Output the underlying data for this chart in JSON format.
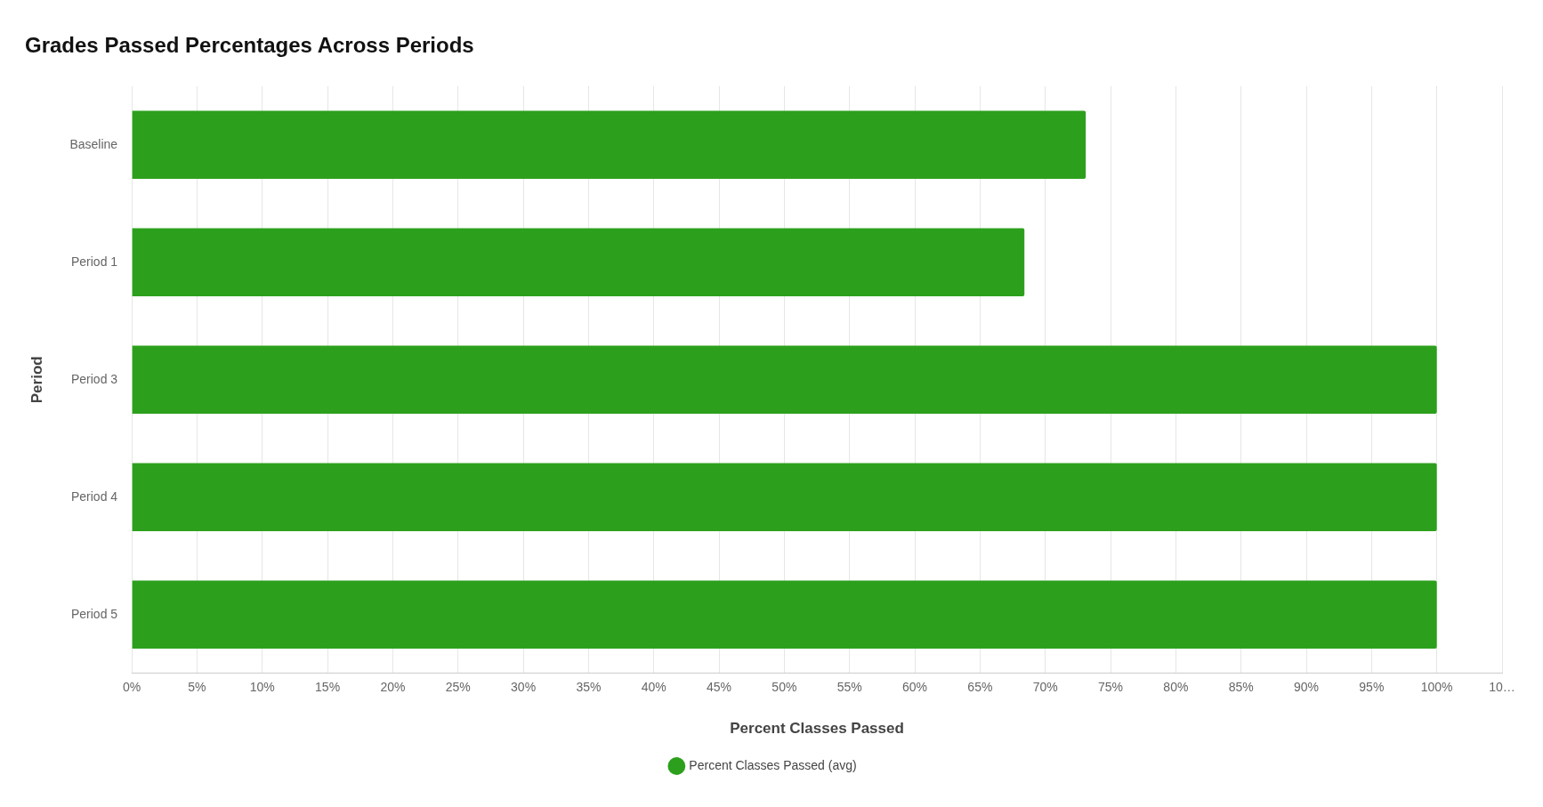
{
  "chart_data": {
    "type": "bar",
    "orientation": "horizontal",
    "title": "Grades Passed Percentages Across Periods",
    "xlabel": "Percent Classes Passed",
    "ylabel": "Period",
    "categories": [
      "Baseline",
      "Period 1",
      "Period 3",
      "Period 4",
      "Period 5"
    ],
    "series": [
      {
        "name": "Percent Classes Passed (avg)",
        "color": "#2ca01c",
        "values": [
          73.1,
          68.4,
          100,
          100,
          100
        ]
      }
    ],
    "xlim": [
      0,
      105
    ],
    "xticks": [
      {
        "value": 0,
        "label": "0%"
      },
      {
        "value": 5,
        "label": "5%"
      },
      {
        "value": 10,
        "label": "10%"
      },
      {
        "value": 15,
        "label": "15%"
      },
      {
        "value": 20,
        "label": "20%"
      },
      {
        "value": 25,
        "label": "25%"
      },
      {
        "value": 30,
        "label": "30%"
      },
      {
        "value": 35,
        "label": "35%"
      },
      {
        "value": 40,
        "label": "40%"
      },
      {
        "value": 45,
        "label": "45%"
      },
      {
        "value": 50,
        "label": "50%"
      },
      {
        "value": 55,
        "label": "55%"
      },
      {
        "value": 60,
        "label": "60%"
      },
      {
        "value": 65,
        "label": "65%"
      },
      {
        "value": 70,
        "label": "70%"
      },
      {
        "value": 75,
        "label": "75%"
      },
      {
        "value": 80,
        "label": "80%"
      },
      {
        "value": 85,
        "label": "85%"
      },
      {
        "value": 90,
        "label": "90%"
      },
      {
        "value": 95,
        "label": "95%"
      },
      {
        "value": 100,
        "label": "100%"
      },
      {
        "value": 105,
        "label": "10…"
      }
    ],
    "grid": "x",
    "legend": "bottom",
    "marker": "circle"
  }
}
